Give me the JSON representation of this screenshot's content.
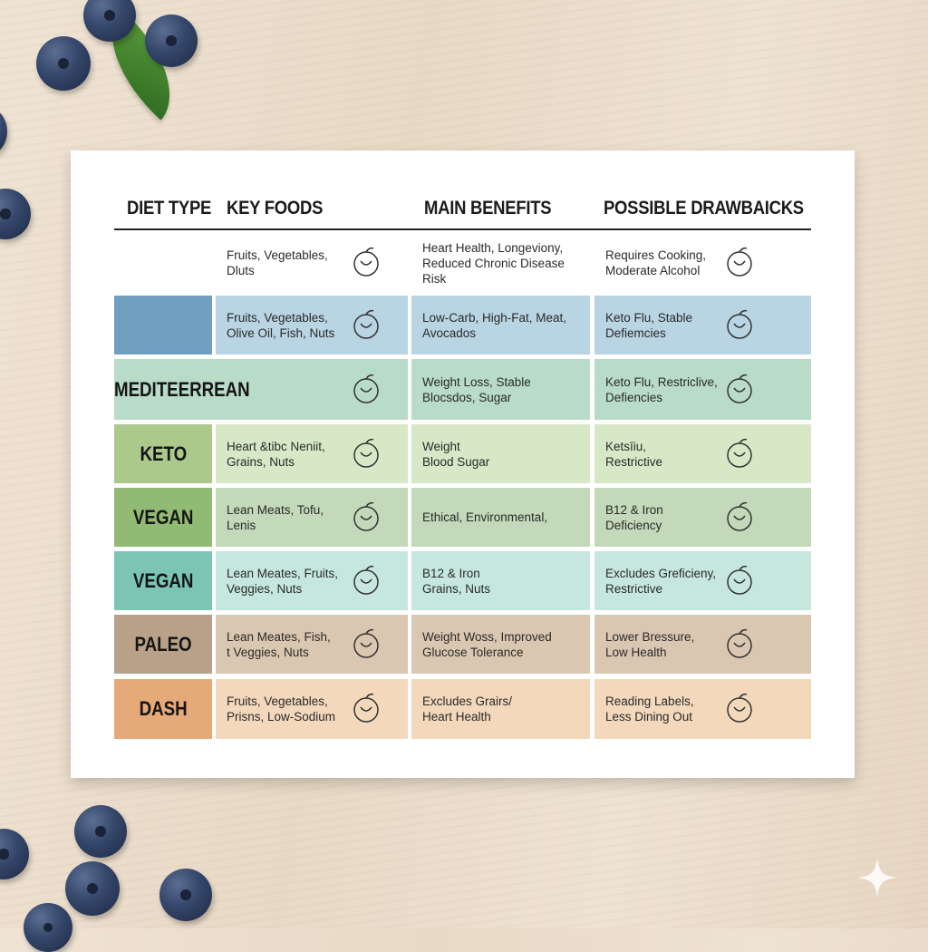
{
  "headers": {
    "diet_type": "DIET TYPE",
    "key_foods": "KEY FOODS",
    "main_benefits": "MAIN BENEFITS",
    "drawbacks": "POSSIBLE DRAWBAICKS"
  },
  "rows": [
    {
      "type": "",
      "foods": "Fruits, Vegetables,\nDluts",
      "benefits": "Heart Health, Longeviony,\nReduced Chronic Disease Risk",
      "drawbacks": "Requires Cooking,\nModerate Alcohol",
      "foods_icon": "heart-icon",
      "drawbacks_icon": "crossed-out-drink-icon",
      "type_color": "#ffffff",
      "cell_color": "#ffffff"
    },
    {
      "type": "",
      "foods": "Fruits, Vegetables,\nOlive Oil, Fish, Nuts",
      "benefits": "Low-Carb, High-Fat, Meat,\nAvocados",
      "drawbacks": "Keto Flu, Stable\nDefiemcies",
      "foods_icon": "watermelon-icon",
      "drawbacks_icon": "salad-bowl-icon",
      "type_color": "#6f9fc1",
      "cell_color": "#b9d4e3"
    },
    {
      "type": "MEDITEERREAN",
      "foods": "",
      "benefits": "Weight Loss, Stable\nBlocsdos, Sugar",
      "drawbacks": "Keto Flu, Restriclive,\nDefiencies",
      "foods_icon": "plant-pot-icon",
      "drawbacks_icon": "fruit-basket-icon",
      "type_color": "#b8dcc8",
      "cell_color": "#b8dcc8"
    },
    {
      "type": "KETO",
      "foods": "Heart &tibc Neniit,\nGrains, Nuts",
      "benefits": "Weight\nBlood Sugar",
      "drawbacks": "Ketsīiu,\nRestrictive",
      "foods_icon": "avocado-icon",
      "drawbacks_icon": "pepper-icon",
      "type_color": "#aac98b",
      "cell_color": "#d7e8c7"
    },
    {
      "type": "VEGAN",
      "foods": "Lean Meats, Tofu,\nLenis",
      "benefits": "Ethical, Environmental,",
      "drawbacks": "B12 & Iron\nDeficiency",
      "foods_icon": "tofu-icon",
      "drawbacks_icon": "crossed-leaf-icon",
      "type_color": "#91bb74",
      "cell_color": "#c3d9b9"
    },
    {
      "type": "VEGAN",
      "foods": "Lean Meates, Fruits,\nVeggies, Nuts",
      "benefits": "B12 & Iron\nGrains, Nuts",
      "drawbacks": "Excludes Greficieny,\nRestrictive",
      "foods_icon": "apple-icon",
      "drawbacks_icon": "bottle-icon",
      "type_color": "#7cc4b4",
      "cell_color": "#c6e7de"
    },
    {
      "type": "PALEO",
      "foods": "Lean Meates, Fish,\nt Veggies, Nuts",
      "benefits": "Weight Woss, Improved\nGlucose Tolerance",
      "drawbacks": "Lower Bressure,\nLow Health",
      "foods_icon": "nuts-icon",
      "drawbacks_icon": "plate-icon",
      "type_color": "#b9a189",
      "cell_color": "#dac7b1"
    },
    {
      "type": "DASH",
      "foods": "Fruits, Vegetables,\nPrisns, Low-Sodium",
      "benefits": "Excludes Grairs/\nHeart Health",
      "drawbacks": "Reading Labels,\nLess Dining Out",
      "foods_icon": "fruit-icon",
      "drawbacks_icon": "fruit-bowl-icon",
      "type_color": "#e6a978",
      "cell_color": "#f3d8bc"
    }
  ]
}
